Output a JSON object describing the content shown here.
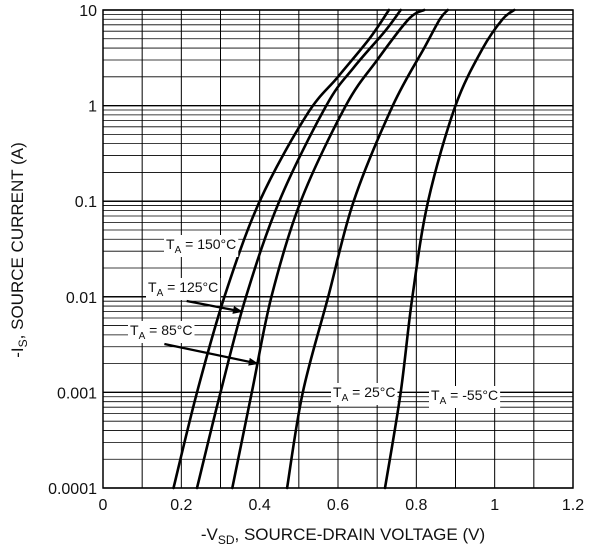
{
  "chart_data": {
    "type": "line",
    "title": "",
    "xlabel": {
      "main": "-V",
      "sub": "SD",
      "rest": ", SOURCE-DRAIN VOLTAGE (V)"
    },
    "ylabel": {
      "main": "-I",
      "sub": "S",
      "rest": ", SOURCE CURRENT (A)"
    },
    "xscale": "linear",
    "yscale": "log",
    "xlim": [
      0,
      1.2
    ],
    "ylim": [
      0.0001,
      10
    ],
    "grid": true,
    "xticks": [
      0,
      0.2,
      0.4,
      0.6,
      0.8,
      1,
      1.2
    ],
    "xtick_labels": [
      "0",
      "0.2",
      "0.4",
      "0.6",
      "0.8",
      "1",
      "1.2"
    ],
    "yticks": [
      0.0001,
      0.001,
      0.01,
      0.1,
      1,
      10
    ],
    "ytick_labels": [
      "0.0001",
      "0.001",
      "0.01",
      "0.1",
      "1",
      "10"
    ],
    "series": [
      {
        "id": "t150",
        "label": {
          "main": "T",
          "sub": "A",
          "rest": " = 150°C"
        },
        "points": [
          [
            0.18,
            0.0001
          ],
          [
            0.24,
            0.001
          ],
          [
            0.31,
            0.01
          ],
          [
            0.4,
            0.1
          ],
          [
            0.52,
            0.8
          ],
          [
            0.6,
            2
          ],
          [
            0.68,
            5
          ],
          [
            0.73,
            10
          ]
        ]
      },
      {
        "id": "t125",
        "label": {
          "main": "T",
          "sub": "A",
          "rest": " = 125°C"
        },
        "points": [
          [
            0.24,
            0.0001
          ],
          [
            0.3,
            0.001
          ],
          [
            0.365,
            0.01
          ],
          [
            0.45,
            0.1
          ],
          [
            0.57,
            1
          ],
          [
            0.64,
            2.5
          ],
          [
            0.72,
            6
          ],
          [
            0.76,
            10
          ]
        ]
      },
      {
        "id": "t85",
        "label": {
          "main": "T",
          "sub": "A",
          "rest": " = 85°C"
        },
        "points": [
          [
            0.33,
            0.0001
          ],
          [
            0.38,
            0.001
          ],
          [
            0.43,
            0.01
          ],
          [
            0.505,
            0.1
          ],
          [
            0.62,
            1
          ],
          [
            0.7,
            3
          ],
          [
            0.78,
            8
          ],
          [
            0.82,
            10
          ]
        ]
      },
      {
        "id": "t25",
        "label": {
          "main": "T",
          "sub": "A",
          "rest": " = 25°C"
        },
        "points": [
          [
            0.47,
            0.0001
          ],
          [
            0.51,
            0.001
          ],
          [
            0.575,
            0.01
          ],
          [
            0.64,
            0.1
          ],
          [
            0.74,
            1
          ],
          [
            0.82,
            4
          ],
          [
            0.86,
            8
          ],
          [
            0.88,
            10
          ]
        ]
      },
      {
        "id": "tm55",
        "label": {
          "main": "T",
          "sub": "A",
          "rest": " = -55°C"
        },
        "points": [
          [
            0.72,
            0.0001
          ],
          [
            0.76,
            0.001
          ],
          [
            0.79,
            0.01
          ],
          [
            0.83,
            0.1
          ],
          [
            0.9,
            1
          ],
          [
            0.97,
            4
          ],
          [
            1.02,
            8
          ],
          [
            1.05,
            10
          ]
        ]
      }
    ],
    "annotations": [
      {
        "series": "t150",
        "text": {
          "main": "T",
          "sub": "A",
          "rest": " = 150°C"
        }
      },
      {
        "series": "t125",
        "text": {
          "main": "T",
          "sub": "A",
          "rest": " = 125°C"
        }
      },
      {
        "series": "t85",
        "text": {
          "main": "T",
          "sub": "A",
          "rest": " = 85°C"
        }
      },
      {
        "series": "t25",
        "text": {
          "main": "T",
          "sub": "A",
          "rest": " = 25°C"
        }
      },
      {
        "series": "tm55",
        "text": {
          "main": "T",
          "sub": "A",
          "rest": " = -55°C"
        }
      }
    ]
  }
}
